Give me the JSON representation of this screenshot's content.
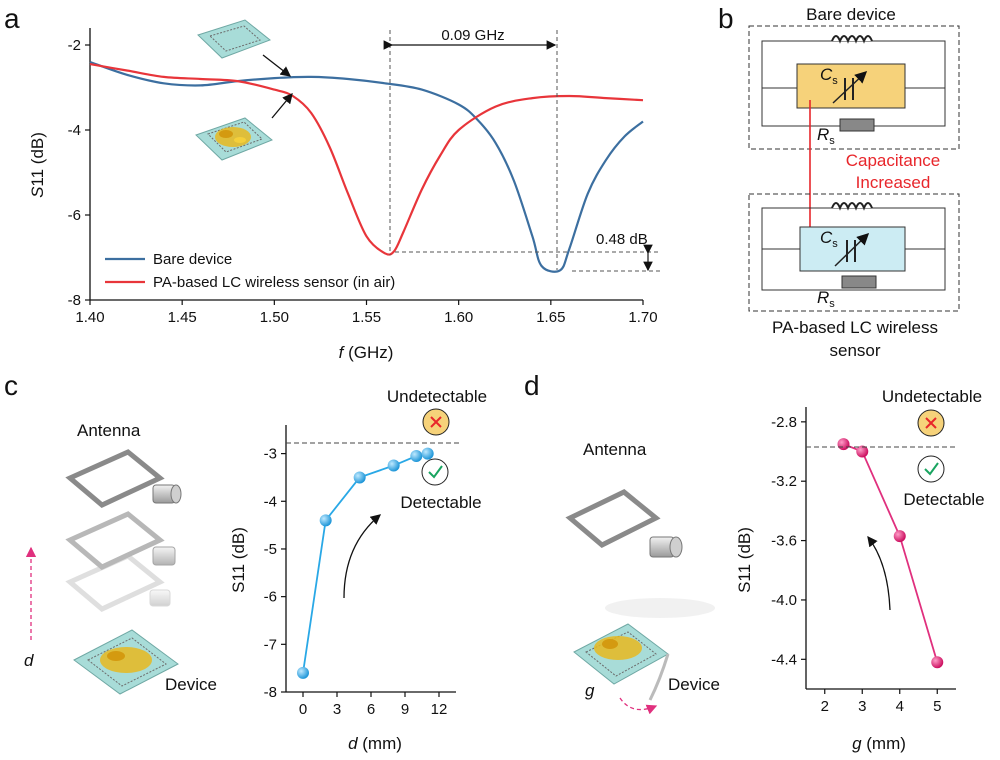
{
  "panels": {
    "a": "a",
    "b": "b",
    "c": "c",
    "d": "d"
  },
  "colors": {
    "bare": "#3c6fa0",
    "pa": "#e8353a",
    "c_series": "#29a8e6",
    "d_series": "#e0307e",
    "device_teal": "#a8dcd8",
    "cap_yellow": "#f6d27a",
    "cap_blue": "#ccecf3"
  },
  "panel_a": {
    "annot_shift": "0.09 GHz",
    "annot_db": "0.48 dB",
    "xlabel_i": "f",
    "xlabel_rest": " (GHz)",
    "ylabel_i": "S",
    "ylabel_rest": "11 (dB)",
    "legend": [
      "Bare device",
      "PA-based LC wireless sensor (in air)"
    ]
  },
  "panel_b": {
    "top_title": "Bare device",
    "bottom_title_1": "PA-based LC wireless",
    "bottom_title_2": "sensor",
    "cap_sym": "C",
    "cap_sub": "s",
    "res_sym": "R",
    "res_sub": "s",
    "arrow_1": "Capacitance",
    "arrow_2": "Increased"
  },
  "panel_c": {
    "antenna": "Antenna",
    "device": "Device",
    "distance_symbol": "d",
    "undetectable": "Undetectable",
    "detectable": "Detectable",
    "xlabel_i": "d",
    "xlabel_rest": " (mm)",
    "ylabel": "S11 (dB)"
  },
  "panel_d": {
    "antenna": "Antenna",
    "device": "Device",
    "gap_symbol": "g",
    "undetectable": "Undetectable",
    "detectable": "Detectable",
    "xlabel_i": "g",
    "xlabel_rest": " (mm)",
    "ylabel": "S11 (dB)"
  },
  "chart_data": [
    {
      "type": "line",
      "xlabel": "f (GHz)",
      "ylabel": "S11 (dB)",
      "xlim": [
        1.4,
        1.7
      ],
      "ylim": [
        -8,
        -1.6
      ],
      "xticks": [
        "1.40",
        "1.45",
        "1.50",
        "1.55",
        "1.60",
        "1.65",
        "1.70"
      ],
      "yticks": [
        "-2",
        "-4",
        "-6",
        "-8"
      ],
      "xtick_values": [
        1.4,
        1.45,
        1.5,
        1.55,
        1.6,
        1.65,
        1.7
      ],
      "ytick_values": [
        -2,
        -4,
        -6,
        -8
      ],
      "legend_position": "bottom-left",
      "series": [
        {
          "name": "Bare device",
          "x": [
            1.4,
            1.42,
            1.44,
            1.46,
            1.48,
            1.5,
            1.52,
            1.54,
            1.56,
            1.58,
            1.6,
            1.61,
            1.62,
            1.63,
            1.64,
            1.645,
            1.655,
            1.66,
            1.67,
            1.68,
            1.69,
            1.7
          ],
          "y": [
            -2.4,
            -2.7,
            -2.9,
            -2.95,
            -2.85,
            -2.78,
            -2.75,
            -2.8,
            -2.9,
            -3.05,
            -3.4,
            -3.75,
            -4.3,
            -5.2,
            -6.5,
            -7.2,
            -7.3,
            -6.8,
            -5.5,
            -4.7,
            -4.15,
            -3.8
          ]
        },
        {
          "name": "PA-based LC wireless sensor (in air)",
          "x": [
            1.4,
            1.42,
            1.44,
            1.46,
            1.48,
            1.5,
            1.51,
            1.52,
            1.53,
            1.54,
            1.55,
            1.56,
            1.565,
            1.57,
            1.58,
            1.59,
            1.6,
            1.62,
            1.64,
            1.66,
            1.68,
            1.7
          ],
          "y": [
            -2.45,
            -2.6,
            -2.75,
            -2.8,
            -2.85,
            -3.05,
            -3.2,
            -3.6,
            -4.4,
            -5.5,
            -6.5,
            -6.9,
            -6.85,
            -6.4,
            -5.4,
            -4.6,
            -4.0,
            -3.45,
            -3.25,
            -3.2,
            -3.25,
            -3.3
          ]
        }
      ],
      "annotations": [
        {
          "text": "0.09 GHz",
          "between_x": [
            1.565,
            1.655
          ]
        },
        {
          "text": "0.48 dB",
          "between_y": [
            -6.9,
            -7.38
          ]
        }
      ]
    },
    {
      "type": "line",
      "xlabel": "d (mm)",
      "ylabel": "S11 (dB)",
      "xlim": [
        -1.5,
        13.5
      ],
      "ylim": [
        -8,
        -2.4
      ],
      "xticks": [
        "0",
        "3",
        "6",
        "9",
        "12"
      ],
      "yticks": [
        "-3",
        "-4",
        "-5",
        "-6",
        "-7",
        "-8"
      ],
      "xtick_values": [
        0,
        3,
        6,
        9,
        12
      ],
      "ytick_values": [
        -3,
        -4,
        -5,
        -6,
        -7,
        -8
      ],
      "threshold": -2.92,
      "series": [
        {
          "x": [
            0,
            2,
            5,
            8,
            10,
            11
          ],
          "y": [
            -7.6,
            -4.4,
            -3.5,
            -3.25,
            -3.05,
            -3.0
          ]
        }
      ]
    },
    {
      "type": "line",
      "xlabel": "g (mm)",
      "ylabel": "S11 (dB)",
      "xlim": [
        1.5,
        5.5
      ],
      "ylim": [
        -4.6,
        -2.7
      ],
      "xticks": [
        "2",
        "3",
        "4",
        "5"
      ],
      "yticks": [
        "-2.8",
        "-3.2",
        "-3.6",
        "-4.0",
        "-4.4"
      ],
      "xtick_values": [
        2,
        3,
        4,
        5
      ],
      "ytick_values": [
        -2.8,
        -3.2,
        -3.6,
        -4.0,
        -4.4
      ],
      "threshold": -2.95,
      "series": [
        {
          "x": [
            2.5,
            3,
            4,
            5
          ],
          "y": [
            -2.95,
            -3.0,
            -3.57,
            -4.42
          ]
        }
      ]
    }
  ]
}
